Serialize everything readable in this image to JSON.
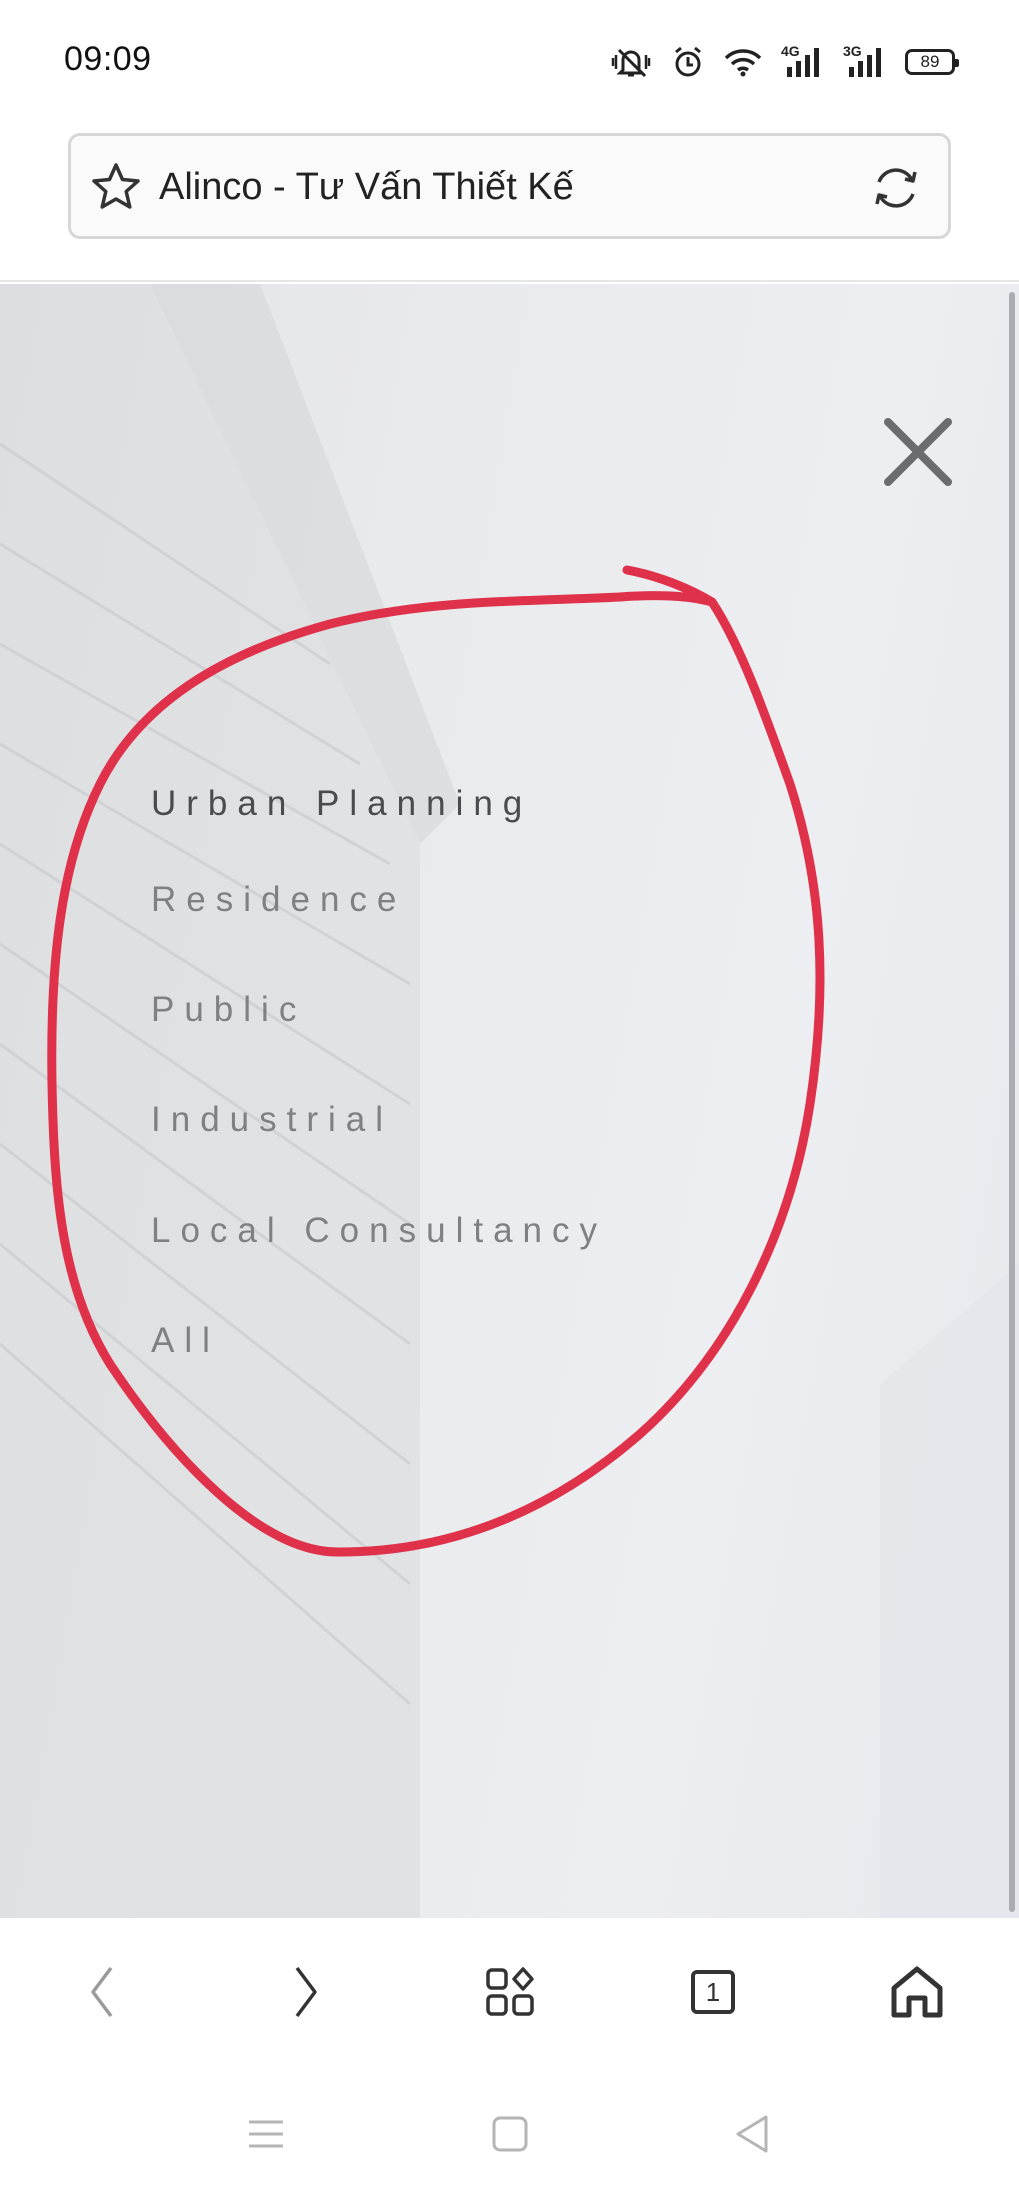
{
  "status_bar": {
    "time": "09:09",
    "icons": [
      "mute-vibrate-icon",
      "alarm-icon",
      "wifi-icon",
      "signal-4g-icon",
      "signal-3g-icon"
    ],
    "net1": "4G",
    "net2": "3G",
    "battery": "89"
  },
  "address_bar": {
    "title": "Alinco - Tư Vấn Thiết Kế",
    "bookmark_icon": "star-icon",
    "reload_icon": "reload-icon"
  },
  "page_menu": {
    "items": [
      {
        "label": "Urban Planning",
        "active": true
      },
      {
        "label": "Residence",
        "active": false
      },
      {
        "label": "Public",
        "active": false
      },
      {
        "label": "Industrial",
        "active": false
      },
      {
        "label": "Local Consultancy",
        "active": false
      },
      {
        "label": "All",
        "active": false
      }
    ],
    "close_icon": "close-icon"
  },
  "annotation": {
    "color": "#e0314a"
  },
  "toolbar": {
    "back_icon": "chevron-left-icon",
    "forward_icon": "chevron-right-icon",
    "apps_icon": "apps-grid-icon",
    "tab_count": "1",
    "home_icon": "home-icon"
  },
  "system_nav": {
    "menu_icon": "recents-menu-icon",
    "home_icon": "square-home-icon",
    "back_icon": "triangle-back-icon"
  },
  "colors": {
    "menu_text": "#7f8082",
    "menu_text_active": "#4a4b4e",
    "background": "#e9eaec"
  }
}
